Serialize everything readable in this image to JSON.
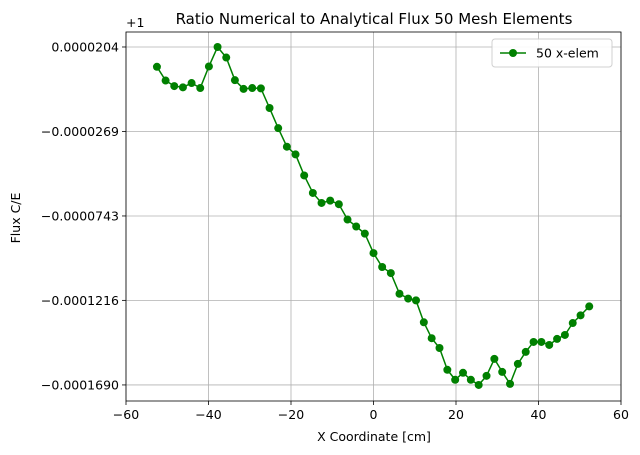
{
  "chart_data": {
    "type": "line",
    "title": "Ratio Numerical to Analytical Flux 50 Mesh Elements",
    "xlabel": "X Coordinate [cm]",
    "ylabel": "Flux C/E",
    "offset_label": "+1",
    "xlim": [
      -60,
      60
    ],
    "ylim": [
      -0.000178,
      2.88e-05
    ],
    "grid": true,
    "legend_position": "top-right",
    "x_ticks": [
      -60,
      -40,
      -20,
      0,
      20,
      40,
      60
    ],
    "x_tick_labels": [
      "−60",
      "−40",
      "−20",
      "0",
      "20",
      "40",
      "60"
    ],
    "y_ticks": [
      2.04e-05,
      -2.69e-05,
      -7.43e-05,
      -0.0001216,
      -0.000169
    ],
    "y_tick_labels": [
      "0.0000204",
      "−0.0000269",
      "−0.0000743",
      "−0.0001216",
      "−0.0001690"
    ],
    "colors": {
      "series": "#008000",
      "grid": "#b0b0b0"
    },
    "series": [
      {
        "name": "50 x-elem",
        "marker": "circle",
        "x": [
          -52.5,
          -50.4,
          -48.3,
          -46.2,
          -44.1,
          -42.0,
          -39.9,
          -37.8,
          -35.7,
          -33.6,
          -31.5,
          -29.4,
          -27.3,
          -25.2,
          -23.1,
          -21.0,
          -18.9,
          -16.8,
          -14.7,
          -12.6,
          -10.5,
          -8.4,
          -6.3,
          -4.2,
          -2.1,
          0.0,
          2.1,
          4.2,
          6.3,
          8.4,
          10.3,
          12.2,
          14.1,
          16.0,
          17.9,
          19.8,
          21.7,
          23.6,
          25.5,
          27.4,
          29.3,
          31.2,
          33.1,
          35.0,
          36.9,
          38.8,
          40.7,
          42.6,
          44.5,
          46.4,
          48.3,
          50.2,
          52.3
        ],
        "y": [
          9.3e-06,
          1.6e-06,
          -1.5e-06,
          -2.2e-06,
          2e-07,
          -2.6e-06,
          9.5e-06,
          2.04e-05,
          1.45e-05,
          1.8e-06,
          -3.1e-06,
          -2.6e-06,
          -2.8e-06,
          -1.38e-05,
          -2.51e-05,
          -3.55e-05,
          -3.98e-05,
          -5.16e-05,
          -6.14e-05,
          -6.7e-05,
          -6.57e-05,
          -6.77e-05,
          -7.63e-05,
          -8.02e-05,
          -8.42e-05,
          -9.51e-05,
          -0.0001029,
          -0.0001063,
          -0.0001179,
          -0.0001206,
          -0.0001216,
          -0.0001339,
          -0.0001428,
          -0.0001483,
          -0.0001605,
          -0.0001661,
          -0.0001622,
          -0.0001661,
          -0.000169,
          -0.0001639,
          -0.0001544,
          -0.0001617,
          -0.0001684,
          -0.0001572,
          -0.0001505,
          -0.0001449,
          -0.0001449,
          -0.0001466,
          -0.0001432,
          -0.000141,
          -0.0001343,
          -0.00013,
          -0.000125
        ]
      }
    ]
  }
}
